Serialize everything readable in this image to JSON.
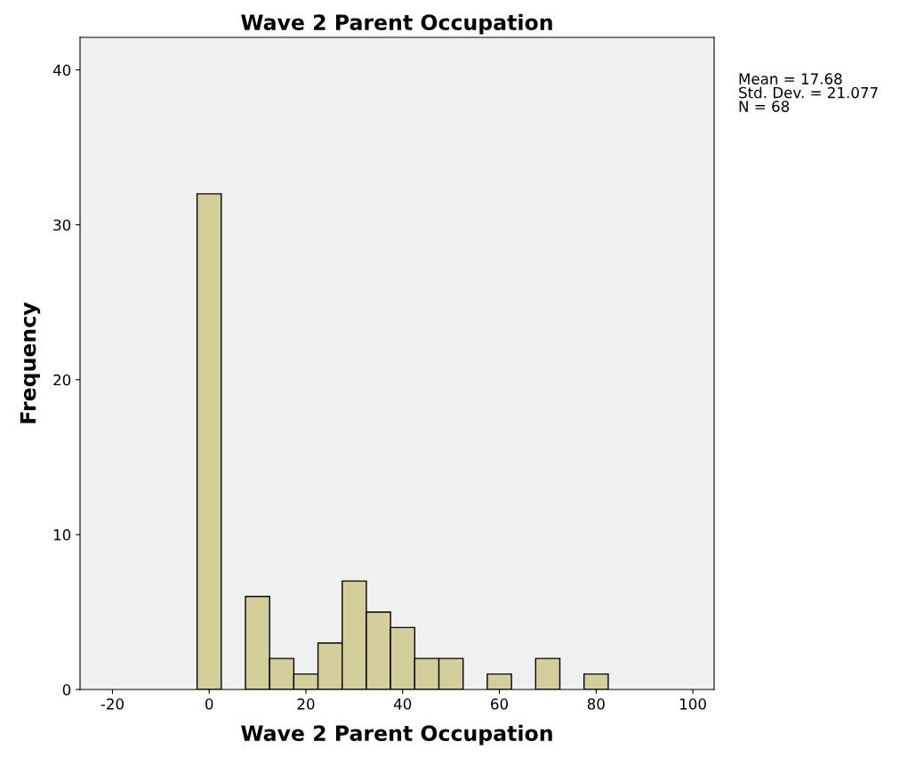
{
  "chart_data": {
    "type": "histogram",
    "title": "Wave 2 Parent Occupation",
    "xlabel": "Wave 2 Parent Occupation",
    "ylabel": "Frequency",
    "bins": [
      -2.5,
      2.5,
      7.5,
      12.5,
      17.5,
      22.5,
      27.5,
      32.5,
      37.5,
      42.5,
      47.5,
      52.5,
      57.5,
      62.5,
      67.5,
      72.5,
      77.5,
      82.5
    ],
    "values": [
      32,
      0,
      6,
      2,
      1,
      3,
      7,
      5,
      4,
      2,
      2,
      0,
      1,
      0,
      2,
      0,
      1
    ],
    "color": "#d4cf98",
    "xlim": [
      -26.7,
      104.4
    ],
    "xticks": [
      -20,
      0,
      20,
      40,
      60,
      80,
      100
    ],
    "ylim": [
      0,
      42.1
    ],
    "yticks": [
      0,
      10,
      20,
      30,
      40
    ],
    "grid": false,
    "annotations": [
      "Mean = 17.68\nStd. Dev. = 21.077\nN = 68"
    ]
  }
}
